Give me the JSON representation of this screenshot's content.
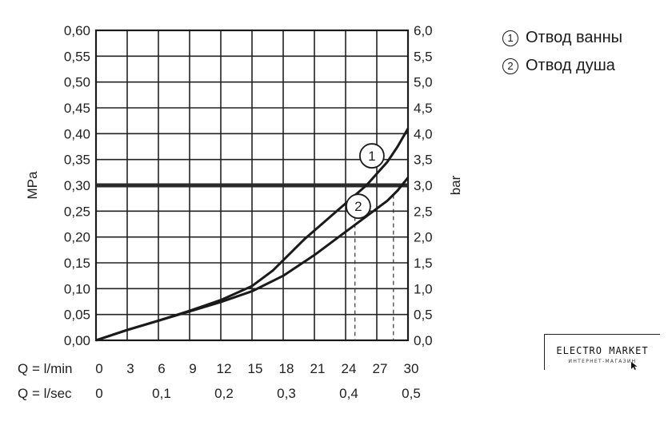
{
  "legend": {
    "items": [
      {
        "marker": "1",
        "label": "Отвод ванны"
      },
      {
        "marker": "2",
        "label": "Отвод душа"
      }
    ]
  },
  "logo": {
    "main": "ELECTRO MARKET",
    "sub": "ИНТЕРНЕТ-МАГАЗИН"
  },
  "chart_data": {
    "type": "line",
    "xlabel_rows": [
      "Q = l/min",
      "Q = l/sec"
    ],
    "x_ticks_lmin": [
      "0",
      "3",
      "6",
      "9",
      "12",
      "15",
      "18",
      "21",
      "24",
      "27",
      "30"
    ],
    "x_ticks_lsec": [
      {
        "label": "0",
        "lmin": 0
      },
      {
        "label": "0,1",
        "lmin": 6
      },
      {
        "label": "0,2",
        "lmin": 12
      },
      {
        "label": "0,3",
        "lmin": 18
      },
      {
        "label": "0,4",
        "lmin": 24
      },
      {
        "label": "0,5",
        "lmin": 30
      }
    ],
    "xlim": [
      0,
      30
    ],
    "ylabel_left": "MPa",
    "ylabel_right": "bar",
    "y_ticks_left": [
      "0,00",
      "0,05",
      "0,10",
      "0,15",
      "0,20",
      "0,25",
      "0,30",
      "0,35",
      "0,40",
      "0,45",
      "0,50",
      "0,55",
      "0,60"
    ],
    "y_ticks_right": [
      "0,0",
      "0,5",
      "1,0",
      "1,5",
      "2,0",
      "2,5",
      "3,0",
      "3,5",
      "4,0",
      "4,5",
      "5,0",
      "5,5",
      "6,0"
    ],
    "ylim": [
      0,
      0.6
    ],
    "grid": true,
    "reference_line": {
      "y": 0.3
    },
    "series": [
      {
        "marker": "1",
        "x": [
          0,
          3,
          6,
          9,
          12,
          15,
          17,
          18,
          20,
          22,
          24,
          26,
          28,
          29,
          30
        ],
        "y": [
          0,
          0.02,
          0.038,
          0.057,
          0.078,
          0.105,
          0.135,
          0.155,
          0.195,
          0.23,
          0.265,
          0.3,
          0.345,
          0.375,
          0.41
        ],
        "marker_at_x": 27.3,
        "drop_line_x": 24.9
      },
      {
        "marker": "2",
        "x": [
          0,
          3,
          6,
          9,
          12,
          15,
          18,
          21,
          24,
          26,
          28,
          29,
          30
        ],
        "y": [
          0,
          0.02,
          0.038,
          0.056,
          0.074,
          0.095,
          0.125,
          0.165,
          0.21,
          0.24,
          0.27,
          0.29,
          0.315
        ],
        "marker_at_x": 27.3,
        "drop_line_x": 28.6
      }
    ]
  }
}
